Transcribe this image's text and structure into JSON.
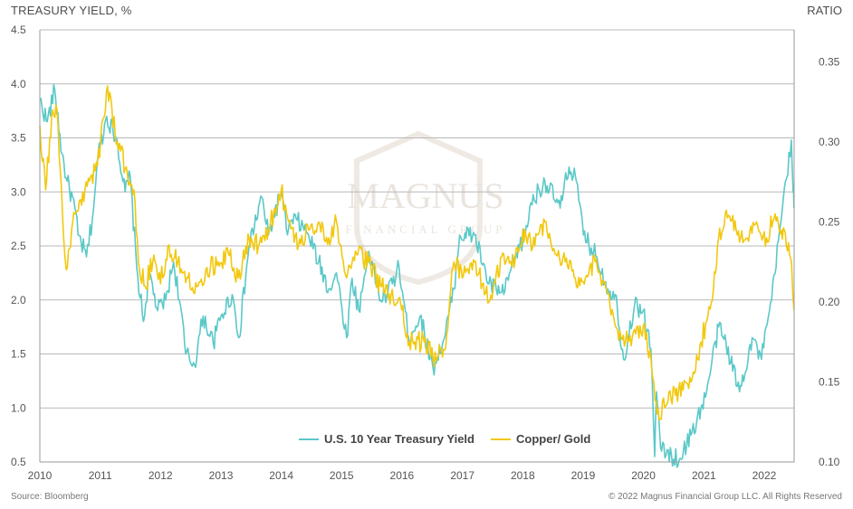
{
  "left_axis_label": "TREASURY YIELD, %",
  "right_axis_label": "RATIO",
  "source": "Source: Bloomberg",
  "copyright": "© 2022 Magnus Financial Group LLC. All Rights Reserved",
  "watermark": {
    "name": "MAGNUS",
    "sub": "FINANCIAL GROUP"
  },
  "chart_data": {
    "type": "line",
    "title": "",
    "grid": true,
    "legend_position": "bottom-center",
    "x_axis": {
      "type": "date",
      "range": [
        "2010-01-01",
        "2022-07-01"
      ],
      "ticks": [
        "2010",
        "2011",
        "2012",
        "2013",
        "2014",
        "2015",
        "2016",
        "2017",
        "2018",
        "2019",
        "2020",
        "2021",
        "2022"
      ]
    },
    "y_left": {
      "label": "TREASURY YIELD, %",
      "range": [
        0.5,
        4.5
      ],
      "ticks": [
        "0.5",
        "1.0",
        "1.5",
        "2.0",
        "2.5",
        "3.0",
        "3.5",
        "4.0",
        "4.5"
      ]
    },
    "y_right": {
      "label": "RATIO",
      "range": [
        0.1,
        0.37
      ],
      "ticks": [
        "0.10",
        "0.15",
        "0.20",
        "0.25",
        "0.30",
        "0.35"
      ]
    },
    "series": [
      {
        "name": "U.S. 10 Year Treasury Yield",
        "axis": "left",
        "color": "#5bc8c8",
        "points": [
          [
            "2010-01-01",
            3.85
          ],
          [
            "2010-02-15",
            3.65
          ],
          [
            "2010-04-01",
            3.95
          ],
          [
            "2010-05-15",
            3.35
          ],
          [
            "2010-06-15",
            3.1
          ],
          [
            "2010-08-01",
            2.85
          ],
          [
            "2010-08-20",
            2.6
          ],
          [
            "2010-10-10",
            2.4
          ],
          [
            "2010-11-15",
            2.75
          ],
          [
            "2010-12-20",
            3.35
          ],
          [
            "2011-02-10",
            3.7
          ],
          [
            "2011-04-10",
            3.5
          ],
          [
            "2011-06-01",
            3.0
          ],
          [
            "2011-07-01",
            3.15
          ],
          [
            "2011-08-10",
            2.3
          ],
          [
            "2011-09-20",
            1.8
          ],
          [
            "2011-10-25",
            2.25
          ],
          [
            "2011-12-15",
            1.9
          ],
          [
            "2012-02-01",
            2.0
          ],
          [
            "2012-03-20",
            2.35
          ],
          [
            "2012-05-01",
            1.95
          ],
          [
            "2012-06-01",
            1.5
          ],
          [
            "2012-07-25",
            1.4
          ],
          [
            "2012-09-15",
            1.85
          ],
          [
            "2012-11-15",
            1.6
          ],
          [
            "2013-01-01",
            1.85
          ],
          [
            "2013-03-10",
            2.05
          ],
          [
            "2013-04-20",
            1.65
          ],
          [
            "2013-06-20",
            2.5
          ],
          [
            "2013-09-05",
            2.95
          ],
          [
            "2013-10-15",
            2.6
          ],
          [
            "2013-12-31",
            3.0
          ],
          [
            "2014-02-01",
            2.65
          ],
          [
            "2014-04-01",
            2.75
          ],
          [
            "2014-06-15",
            2.6
          ],
          [
            "2014-08-15",
            2.35
          ],
          [
            "2014-10-15",
            2.1
          ],
          [
            "2014-12-01",
            2.25
          ],
          [
            "2015-01-31",
            1.65
          ],
          [
            "2015-03-05",
            2.2
          ],
          [
            "2015-04-15",
            1.9
          ],
          [
            "2015-06-15",
            2.45
          ],
          [
            "2015-08-25",
            2.0
          ],
          [
            "2015-10-01",
            2.05
          ],
          [
            "2015-12-15",
            2.3
          ],
          [
            "2016-02-10",
            1.65
          ],
          [
            "2016-04-20",
            1.85
          ],
          [
            "2016-07-07",
            1.37
          ],
          [
            "2016-09-15",
            1.65
          ],
          [
            "2016-11-10",
            2.1
          ],
          [
            "2016-12-15",
            2.6
          ],
          [
            "2017-03-15",
            2.6
          ],
          [
            "2017-06-10",
            2.15
          ],
          [
            "2017-09-08",
            2.05
          ],
          [
            "2017-11-15",
            2.4
          ],
          [
            "2018-01-15",
            2.6
          ],
          [
            "2018-02-20",
            2.9
          ],
          [
            "2018-05-15",
            3.1
          ],
          [
            "2018-08-15",
            2.85
          ],
          [
            "2018-10-08",
            3.23
          ],
          [
            "2018-11-15",
            3.15
          ],
          [
            "2019-01-03",
            2.6
          ],
          [
            "2019-03-25",
            2.4
          ],
          [
            "2019-05-31",
            2.1
          ],
          [
            "2019-07-15",
            2.05
          ],
          [
            "2019-09-03",
            1.45
          ],
          [
            "2019-11-08",
            1.95
          ],
          [
            "2019-12-31",
            1.9
          ],
          [
            "2020-02-15",
            1.55
          ],
          [
            "2020-03-09",
            0.55
          ],
          [
            "2020-03-20",
            1.15
          ],
          [
            "2020-04-20",
            0.6
          ],
          [
            "2020-08-04",
            0.52
          ],
          [
            "2020-10-15",
            0.75
          ],
          [
            "2021-01-10",
            1.1
          ],
          [
            "2021-03-31",
            1.75
          ],
          [
            "2021-05-15",
            1.6
          ],
          [
            "2021-08-04",
            1.15
          ],
          [
            "2021-10-20",
            1.65
          ],
          [
            "2021-12-15",
            1.45
          ],
          [
            "2022-02-15",
            2.0
          ],
          [
            "2022-04-10",
            2.7
          ],
          [
            "2022-05-10",
            3.1
          ],
          [
            "2022-06-14",
            3.48
          ],
          [
            "2022-06-25",
            3.0
          ],
          [
            "2022-06-30",
            2.85
          ]
        ]
      },
      {
        "name": "Copper/ Gold",
        "axis": "right",
        "color": "#f2c80f",
        "points": [
          [
            "2010-01-01",
            0.31
          ],
          [
            "2010-02-05",
            0.27
          ],
          [
            "2010-03-20",
            0.32
          ],
          [
            "2010-04-15",
            0.32
          ],
          [
            "2010-05-25",
            0.24
          ],
          [
            "2010-06-10",
            0.22
          ],
          [
            "2010-08-01",
            0.255
          ],
          [
            "2010-10-01",
            0.27
          ],
          [
            "2010-12-15",
            0.285
          ],
          [
            "2011-02-15",
            0.335
          ],
          [
            "2011-04-15",
            0.3
          ],
          [
            "2011-06-15",
            0.28
          ],
          [
            "2011-07-25",
            0.27
          ],
          [
            "2011-08-20",
            0.225
          ],
          [
            "2011-09-30",
            0.21
          ],
          [
            "2011-11-15",
            0.225
          ],
          [
            "2012-01-15",
            0.215
          ],
          [
            "2012-02-15",
            0.235
          ],
          [
            "2012-04-15",
            0.225
          ],
          [
            "2012-06-15",
            0.215
          ],
          [
            "2012-08-15",
            0.21
          ],
          [
            "2012-10-01",
            0.22
          ],
          [
            "2012-12-15",
            0.225
          ],
          [
            "2013-02-15",
            0.23
          ],
          [
            "2013-04-15",
            0.215
          ],
          [
            "2013-06-20",
            0.24
          ],
          [
            "2013-08-15",
            0.235
          ],
          [
            "2013-10-15",
            0.245
          ],
          [
            "2013-12-31",
            0.27
          ],
          [
            "2014-02-15",
            0.25
          ],
          [
            "2014-04-15",
            0.235
          ],
          [
            "2014-06-15",
            0.245
          ],
          [
            "2014-08-15",
            0.25
          ],
          [
            "2014-10-15",
            0.24
          ],
          [
            "2014-12-01",
            0.25
          ],
          [
            "2015-01-31",
            0.215
          ],
          [
            "2015-04-01",
            0.23
          ],
          [
            "2015-06-15",
            0.225
          ],
          [
            "2015-08-25",
            0.21
          ],
          [
            "2015-10-15",
            0.205
          ],
          [
            "2015-12-31",
            0.195
          ],
          [
            "2016-02-15",
            0.175
          ],
          [
            "2016-05-15",
            0.175
          ],
          [
            "2016-07-07",
            0.165
          ],
          [
            "2016-09-15",
            0.17
          ],
          [
            "2016-11-10",
            0.225
          ],
          [
            "2016-12-31",
            0.215
          ],
          [
            "2017-03-15",
            0.225
          ],
          [
            "2017-06-10",
            0.2
          ],
          [
            "2017-09-08",
            0.23
          ],
          [
            "2017-11-15",
            0.225
          ],
          [
            "2018-01-15",
            0.245
          ],
          [
            "2018-03-15",
            0.235
          ],
          [
            "2018-05-15",
            0.25
          ],
          [
            "2018-07-15",
            0.23
          ],
          [
            "2018-09-15",
            0.225
          ],
          [
            "2018-11-15",
            0.215
          ],
          [
            "2019-01-15",
            0.215
          ],
          [
            "2019-03-15",
            0.225
          ],
          [
            "2019-05-31",
            0.205
          ],
          [
            "2019-07-15",
            0.185
          ],
          [
            "2019-09-15",
            0.175
          ],
          [
            "2019-11-15",
            0.18
          ],
          [
            "2019-12-31",
            0.185
          ],
          [
            "2020-02-15",
            0.165
          ],
          [
            "2020-03-23",
            0.13
          ],
          [
            "2020-05-15",
            0.135
          ],
          [
            "2020-08-01",
            0.145
          ],
          [
            "2020-10-15",
            0.15
          ],
          [
            "2020-12-15",
            0.175
          ],
          [
            "2021-02-15",
            0.2
          ],
          [
            "2021-03-31",
            0.24
          ],
          [
            "2021-05-10",
            0.255
          ],
          [
            "2021-07-15",
            0.245
          ],
          [
            "2021-09-15",
            0.24
          ],
          [
            "2021-11-15",
            0.25
          ],
          [
            "2022-01-15",
            0.24
          ],
          [
            "2022-03-08",
            0.255
          ],
          [
            "2022-04-15",
            0.245
          ],
          [
            "2022-05-15",
            0.235
          ],
          [
            "2022-06-15",
            0.225
          ],
          [
            "2022-06-30",
            0.195
          ]
        ]
      }
    ]
  }
}
